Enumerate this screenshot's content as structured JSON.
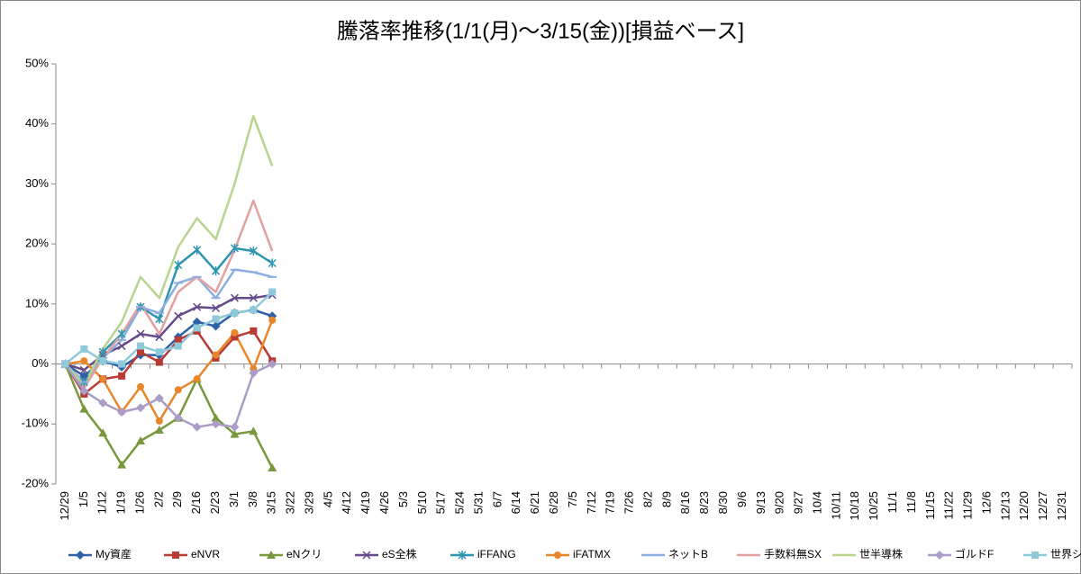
{
  "chart_data": {
    "type": "line",
    "title": "騰落率推移(1/1(月)～3/15(金))[損益ベース]",
    "categories": [
      "12/29",
      "1/5",
      "1/12",
      "1/19",
      "1/26",
      "2/2",
      "2/9",
      "2/16",
      "2/23",
      "3/1",
      "3/8",
      "3/15",
      "3/22",
      "3/29",
      "4/5",
      "4/12",
      "4/19",
      "4/26",
      "5/3",
      "5/10",
      "5/17",
      "5/24",
      "5/31",
      "6/7",
      "6/14",
      "6/21",
      "6/28",
      "7/5",
      "7/12",
      "7/19",
      "7/26",
      "8/2",
      "8/9",
      "8/16",
      "8/23",
      "8/30",
      "9/6",
      "9/13",
      "9/20",
      "9/27",
      "10/4",
      "10/11",
      "10/18",
      "10/25",
      "11/1",
      "11/8",
      "11/15",
      "11/22",
      "11/29",
      "12/6",
      "12/13",
      "12/20",
      "12/27",
      "12/31"
    ],
    "series": [
      {
        "name": "My資産",
        "color": "#2e62a6",
        "marker": "diamond",
        "values": [
          0,
          -2,
          0.5,
          -0.5,
          1.5,
          1.5,
          4.5,
          7,
          6.3,
          8.5,
          9,
          8,
          null,
          null,
          null,
          null,
          null,
          null,
          null,
          null,
          null,
          null,
          null,
          null,
          null,
          null,
          null,
          null,
          null,
          null,
          null,
          null,
          null,
          null,
          null,
          null,
          null,
          null,
          null,
          null,
          null,
          null,
          null,
          null,
          null,
          null,
          null,
          null,
          null,
          null,
          null,
          null,
          null,
          null
        ]
      },
      {
        "name": "eNVR",
        "color": "#b83b36",
        "marker": "square",
        "values": [
          0,
          -5,
          -2.5,
          -2,
          2,
          0.3,
          4,
          5.5,
          1,
          4.5,
          5.5,
          0.5,
          null,
          null,
          null,
          null,
          null,
          null,
          null,
          null,
          null,
          null,
          null,
          null,
          null,
          null,
          null,
          null,
          null,
          null,
          null,
          null,
          null,
          null,
          null,
          null,
          null,
          null,
          null,
          null,
          null,
          null,
          null,
          null,
          null,
          null,
          null,
          null,
          null,
          null,
          null,
          null,
          null,
          null
        ]
      },
      {
        "name": "eNクリ",
        "color": "#78983c",
        "marker": "triangle",
        "values": [
          0,
          -7.5,
          -11.5,
          -16.8,
          -12.8,
          -11,
          -9,
          -2.5,
          -9,
          -11.7,
          -11.2,
          -17.3,
          null,
          null,
          null,
          null,
          null,
          null,
          null,
          null,
          null,
          null,
          null,
          null,
          null,
          null,
          null,
          null,
          null,
          null,
          null,
          null,
          null,
          null,
          null,
          null,
          null,
          null,
          null,
          null,
          null,
          null,
          null,
          null,
          null,
          null,
          null,
          null,
          null,
          null,
          null,
          null,
          null,
          null
        ]
      },
      {
        "name": "eS全株",
        "color": "#65498a",
        "marker": "x",
        "values": [
          0,
          -1,
          1.5,
          3,
          5,
          4.5,
          8,
          9.5,
          9.3,
          11,
          11,
          11.5,
          null,
          null,
          null,
          null,
          null,
          null,
          null,
          null,
          null,
          null,
          null,
          null,
          null,
          null,
          null,
          null,
          null,
          null,
          null,
          null,
          null,
          null,
          null,
          null,
          null,
          null,
          null,
          null,
          null,
          null,
          null,
          null,
          null,
          null,
          null,
          null,
          null,
          null,
          null,
          null,
          null,
          null
        ]
      },
      {
        "name": "iFFANG",
        "color": "#2e95b0",
        "marker": "star",
        "values": [
          0,
          -3,
          2,
          5,
          9.5,
          7.5,
          16.5,
          19,
          15.5,
          19.3,
          18.8,
          16.8,
          null,
          null,
          null,
          null,
          null,
          null,
          null,
          null,
          null,
          null,
          null,
          null,
          null,
          null,
          null,
          null,
          null,
          null,
          null,
          null,
          null,
          null,
          null,
          null,
          null,
          null,
          null,
          null,
          null,
          null,
          null,
          null,
          null,
          null,
          null,
          null,
          null,
          null,
          null,
          null,
          null,
          null
        ]
      },
      {
        "name": "iFATMX",
        "color": "#e8862c",
        "marker": "circle",
        "values": [
          0,
          0.5,
          -2.5,
          -8,
          -3.8,
          -9.5,
          -4.3,
          -2.5,
          1.5,
          5.2,
          -0.8,
          7.3,
          null,
          null,
          null,
          null,
          null,
          null,
          null,
          null,
          null,
          null,
          null,
          null,
          null,
          null,
          null,
          null,
          null,
          null,
          null,
          null,
          null,
          null,
          null,
          null,
          null,
          null,
          null,
          null,
          null,
          null,
          null,
          null,
          null,
          null,
          null,
          null,
          null,
          null,
          null,
          null,
          null,
          null
        ]
      },
      {
        "name": "ネットB",
        "color": "#8caee0",
        "marker": "dash",
        "values": [
          0,
          -3,
          1,
          4,
          9.5,
          8.5,
          13.5,
          14.5,
          11,
          15.7,
          15.3,
          14.5,
          null,
          null,
          null,
          null,
          null,
          null,
          null,
          null,
          null,
          null,
          null,
          null,
          null,
          null,
          null,
          null,
          null,
          null,
          null,
          null,
          null,
          null,
          null,
          null,
          null,
          null,
          null,
          null,
          null,
          null,
          null,
          null,
          null,
          null,
          null,
          null,
          null,
          null,
          null,
          null,
          null,
          null
        ]
      },
      {
        "name": "手数料無SX",
        "color": "#e2a09f",
        "marker": "none",
        "values": [
          0,
          -4,
          1,
          5,
          10,
          5,
          12,
          14.5,
          12,
          19,
          27.2,
          18.8,
          null,
          null,
          null,
          null,
          null,
          null,
          null,
          null,
          null,
          null,
          null,
          null,
          null,
          null,
          null,
          null,
          null,
          null,
          null,
          null,
          null,
          null,
          null,
          null,
          null,
          null,
          null,
          null,
          null,
          null,
          null,
          null,
          null,
          null,
          null,
          null,
          null,
          null,
          null,
          null,
          null,
          null
        ]
      },
      {
        "name": "世半導株",
        "color": "#b8d48e",
        "marker": "none",
        "values": [
          0,
          -3.5,
          2.5,
          7,
          14.5,
          11,
          19.5,
          24.3,
          20.8,
          30,
          41.3,
          33,
          null,
          null,
          null,
          null,
          null,
          null,
          null,
          null,
          null,
          null,
          null,
          null,
          null,
          null,
          null,
          null,
          null,
          null,
          null,
          null,
          null,
          null,
          null,
          null,
          null,
          null,
          null,
          null,
          null,
          null,
          null,
          null,
          null,
          null,
          null,
          null,
          null,
          null,
          null,
          null,
          null,
          null
        ]
      },
      {
        "name": "ゴルドF",
        "color": "#ab9cc8",
        "marker": "diamond",
        "values": [
          0,
          -4.5,
          -6.5,
          -8,
          -7.3,
          -5.7,
          -9,
          -10.5,
          -10,
          -10.5,
          -1.5,
          0,
          null,
          null,
          null,
          null,
          null,
          null,
          null,
          null,
          null,
          null,
          null,
          null,
          null,
          null,
          null,
          null,
          null,
          null,
          null,
          null,
          null,
          null,
          null,
          null,
          null,
          null,
          null,
          null,
          null,
          null,
          null,
          null,
          null,
          null,
          null,
          null,
          null,
          null,
          null,
          null,
          null,
          null
        ]
      },
      {
        "name": "世界シェール",
        "color": "#8fcadb",
        "marker": "square",
        "values": [
          0,
          2.5,
          0.5,
          0,
          3,
          2,
          3,
          6,
          7.5,
          8.5,
          9,
          12,
          null,
          null,
          null,
          null,
          null,
          null,
          null,
          null,
          null,
          null,
          null,
          null,
          null,
          null,
          null,
          null,
          null,
          null,
          null,
          null,
          null,
          null,
          null,
          null,
          null,
          null,
          null,
          null,
          null,
          null,
          null,
          null,
          null,
          null,
          null,
          null,
          null,
          null,
          null,
          null,
          null,
          null
        ]
      }
    ],
    "ylim": [
      -20,
      50
    ],
    "yticks": [
      {
        "value": -20,
        "label": "-20%"
      },
      {
        "value": -10,
        "label": "-10%"
      },
      {
        "value": 0,
        "label": "0%"
      },
      {
        "value": 10,
        "label": "10%"
      },
      {
        "value": 20,
        "label": "20%"
      },
      {
        "value": 30,
        "label": "30%"
      },
      {
        "value": 40,
        "label": "40%"
      },
      {
        "value": 50,
        "label": "50%"
      }
    ],
    "grid": false,
    "legend": "bottom"
  }
}
